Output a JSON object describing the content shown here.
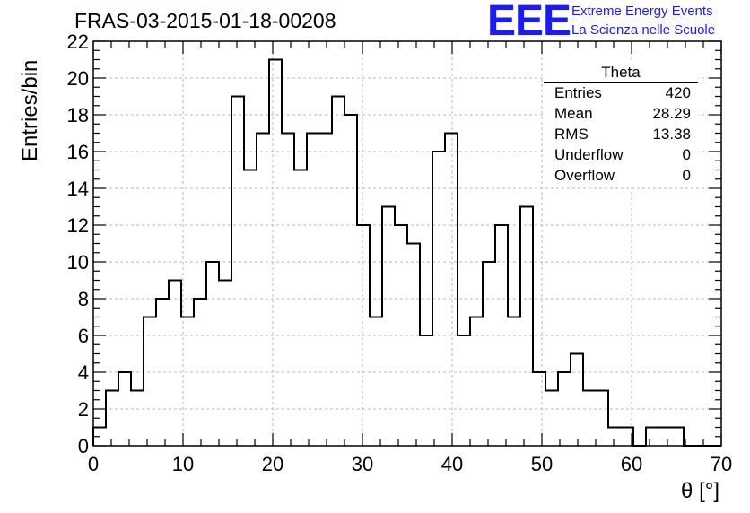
{
  "header": {
    "title": "FRAS-03-2015-01-18-00208",
    "logo_mark": "EEE",
    "logo_line1": "Extreme Energy Events",
    "logo_line2": "La Scienza nelle Scuole"
  },
  "stats_box": {
    "title": "Theta",
    "rows": [
      {
        "label": "Entries",
        "value": "420"
      },
      {
        "label": "Mean",
        "value": "28.29"
      },
      {
        "label": "RMS",
        "value": "13.38"
      },
      {
        "label": "Underflow",
        "value": "0"
      },
      {
        "label": "Overflow",
        "value": "0"
      }
    ]
  },
  "chart_data": {
    "type": "bar",
    "title": "FRAS-03-2015-01-18-00208",
    "xlabel": "θ [°]",
    "ylabel": "Entries/bin",
    "xlim": [
      0,
      70
    ],
    "ylim": [
      0,
      22
    ],
    "grid": true,
    "bin_width": 1.4,
    "bin_lower_edges": [
      0.0,
      1.4,
      2.8,
      4.2,
      5.6,
      7.0,
      8.4,
      9.8,
      11.2,
      12.6,
      14.0,
      15.4,
      16.8,
      18.2,
      19.6,
      21.0,
      22.4,
      23.8,
      25.2,
      26.6,
      28.0,
      29.4,
      30.8,
      32.2,
      33.6,
      35.0,
      36.4,
      37.8,
      39.2,
      40.6,
      42.0,
      43.4,
      44.8,
      46.2,
      47.6,
      49.0,
      50.4,
      51.8,
      53.2,
      54.6,
      56.0,
      57.4,
      58.8,
      60.2,
      61.6,
      63.0,
      64.4,
      65.8,
      67.2,
      68.6
    ],
    "values": [
      1,
      3,
      4,
      3,
      7,
      8,
      9,
      7,
      8,
      10,
      9,
      19,
      15,
      17,
      21,
      17,
      15,
      17,
      17,
      19,
      18,
      12,
      7,
      13,
      12,
      11,
      6,
      16,
      17,
      6,
      7,
      10,
      12,
      7,
      13,
      4,
      3,
      4,
      5,
      3,
      3,
      1,
      1,
      0,
      1,
      1,
      1,
      0,
      0,
      0
    ],
    "x_ticks": [
      "0",
      "10",
      "20",
      "30",
      "40",
      "50",
      "60",
      "70"
    ],
    "y_ticks": [
      "0",
      "2",
      "4",
      "6",
      "8",
      "10",
      "12",
      "14",
      "16",
      "18",
      "20",
      "22"
    ]
  }
}
